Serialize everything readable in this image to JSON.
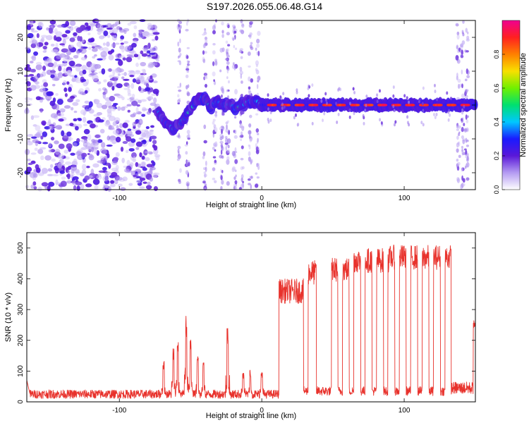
{
  "title": "S197.2026.055.06.48.G14",
  "chart_data": [
    {
      "type": "heatmap",
      "xlabel": "Height of straight line (km)",
      "ylabel": "Frequency (Hz)",
      "xlim": [
        -165,
        150
      ],
      "ylim": [
        -25,
        25
      ],
      "x_ticks": [
        -100,
        0,
        100
      ],
      "y_ticks": [
        -20,
        -10,
        0,
        10,
        20
      ],
      "colorbar": {
        "label": "Normalized spectral amplitude",
        "range": [
          0,
          1
        ],
        "ticks": [
          "0.0",
          "0.2",
          "0.4",
          "0.6",
          "0.8"
        ],
        "colors": [
          "#ffffff",
          "#b49bf2",
          "#5a18d8",
          "#1a1aff",
          "#00c8ff",
          "#00e070",
          "#70f000",
          "#f8e000",
          "#ff8000",
          "#ff2020",
          "#f00090"
        ]
      },
      "regions": [
        {
          "x": [
            -165,
            -73
          ],
          "pattern": "broadband noise"
        },
        {
          "x": [
            -73,
            0
          ],
          "pattern": "wandering signal",
          "path_x": [
            -73,
            -68,
            -63,
            -58,
            -53,
            -48,
            -44,
            -40,
            -36,
            -32,
            -27,
            -22,
            -18,
            -14,
            -10,
            -6,
            -2
          ],
          "path_y": [
            -2,
            -5,
            -7,
            -6,
            -3,
            0,
            2,
            2,
            -1,
            1,
            0,
            0,
            -1,
            0,
            1,
            1,
            1
          ]
        },
        {
          "x": [
            0,
            150
          ],
          "pattern": "steady tone",
          "frequency_hz": 0
        }
      ]
    },
    {
      "type": "line",
      "xlabel": "Height of straight line (km)",
      "ylabel": "SNR (10 * v/v)",
      "xlim": [
        -165,
        150
      ],
      "ylim": [
        0,
        550
      ],
      "x_ticks": [
        -100,
        0,
        100
      ],
      "y_ticks": [
        0,
        100,
        200,
        300,
        400,
        500
      ],
      "color": "#e8322c",
      "series_summary": {
        "baseline_x": [
          -165,
          12
        ],
        "baseline_level": 25,
        "spikes": [
          {
            "x": -69,
            "y": 130
          },
          {
            "x": -62,
            "y": 175
          },
          {
            "x": -59,
            "y": 185
          },
          {
            "x": -53,
            "y": 270
          },
          {
            "x": -50,
            "y": 200
          },
          {
            "x": -45,
            "y": 150
          },
          {
            "x": -41,
            "y": 130
          },
          {
            "x": -24,
            "y": 235
          },
          {
            "x": -13,
            "y": 90
          },
          {
            "x": -8,
            "y": 100
          },
          {
            "x": 0,
            "y": 95
          }
        ],
        "plateau_start_x": 12,
        "plateau_segments": [
          {
            "x": [
              12,
              32
            ],
            "level": 360
          },
          {
            "x": [
              32,
              40
            ],
            "level": 420
          },
          {
            "x": [
              49,
              62
            ],
            "level": 430
          },
          {
            "x": [
              62,
              90
            ],
            "level": 460
          },
          {
            "x": [
              90,
              133
            ],
            "level": 470
          }
        ],
        "dropouts_x": [
          31,
          40,
          47,
          55,
          63,
          71,
          79,
          87,
          95,
          103,
          111,
          119,
          127
        ],
        "dropout_level": 35,
        "tail": {
          "x": [
            133,
            150
          ],
          "level": 45,
          "end_y": 270
        }
      }
    }
  ]
}
